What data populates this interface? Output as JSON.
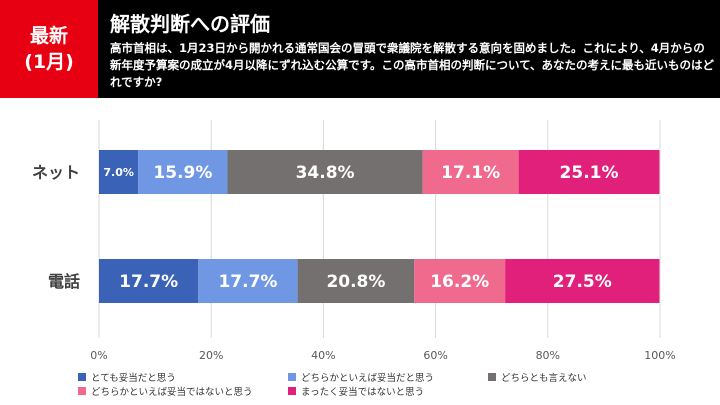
{
  "header": {
    "badge_line1": "最新",
    "badge_line2": "(1月)",
    "title": "解散判断への評価",
    "question": "高市首相は、1月23日から開かれる通常国会の冒頭で衆議院を解散する意向を固めました。これにより、4月からの新年度予算案の成立が4月以降にずれ込む公算です。この高市首相の判断について、あなたの考えに最も近いものはどれですか?"
  },
  "chart_data": {
    "type": "bar",
    "orientation": "horizontal-stacked-100",
    "categories": [
      "ネット",
      "電話"
    ],
    "series": [
      {
        "name": "とても妥当だと思う",
        "color": "#3a63b8",
        "values": [
          7.0,
          17.7
        ]
      },
      {
        "name": "どちらかといえば妥当だと思う",
        "color": "#6f97e3",
        "values": [
          15.9,
          17.7
        ]
      },
      {
        "name": "どちらとも言えない",
        "color": "#757070",
        "values": [
          34.8,
          20.8
        ]
      },
      {
        "name": "どちらかといえば妥当ではないと思う",
        "color": "#f06a8e",
        "values": [
          17.1,
          16.2
        ]
      },
      {
        "name": "まったく妥当ではないと思う",
        "color": "#e0207a",
        "values": [
          25.1,
          27.5
        ]
      }
    ],
    "xlim": [
      0,
      100
    ],
    "xticks": [
      "0%",
      "20%",
      "40%",
      "60%",
      "80%",
      "100%"
    ],
    "grid": true,
    "legend_position": "bottom"
  }
}
